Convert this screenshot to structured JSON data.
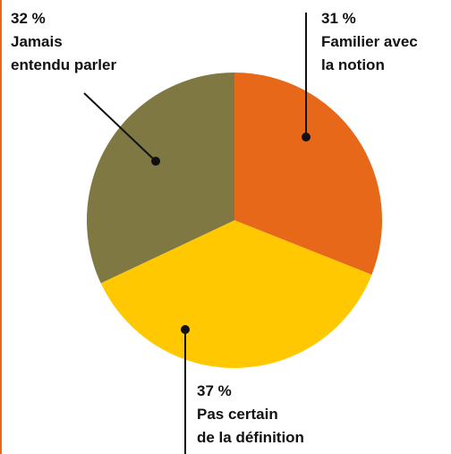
{
  "chart_data": {
    "type": "pie",
    "categories": [
      "Familier avec\nla notion",
      "Pas certain\nde la définition",
      "Jamais\nentendu parler"
    ],
    "values": [
      31,
      37,
      32
    ],
    "value_labels": [
      "31 %",
      "37 %",
      "32 %"
    ],
    "colors": [
      "#e8681a",
      "#ffc800",
      "#7f7843"
    ]
  }
}
